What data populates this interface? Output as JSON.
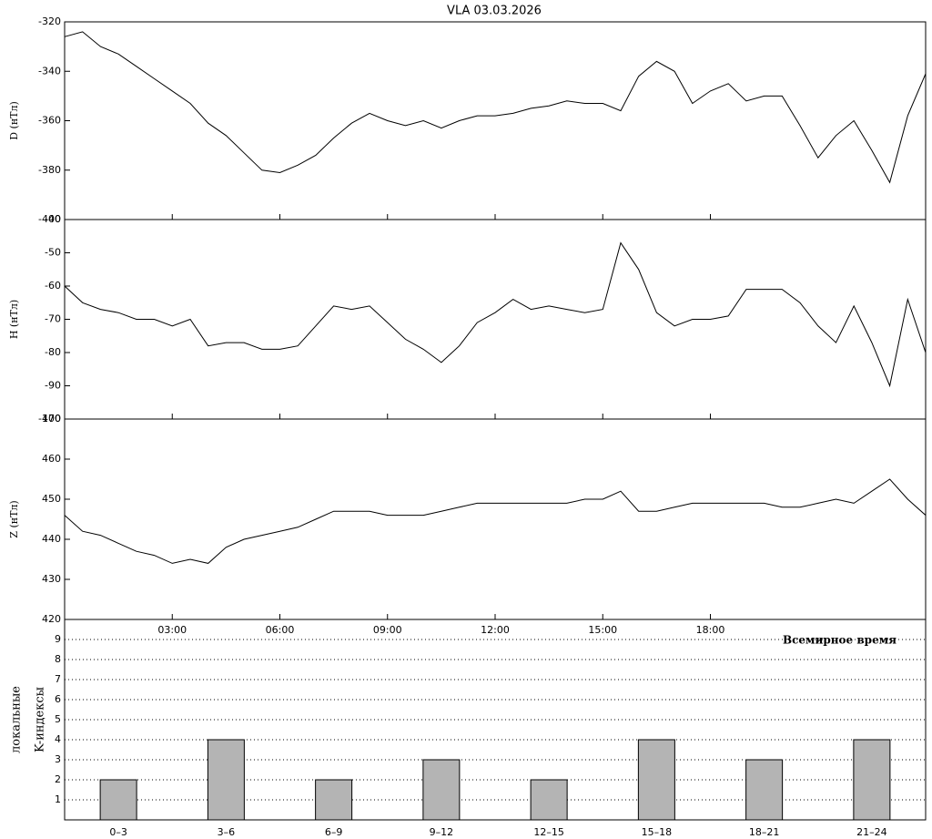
{
  "chart_data": [
    {
      "type": "line",
      "title": "VLA   03.03.2026",
      "y_label": "D (нТл)",
      "x": [
        0,
        0.5,
        1,
        1.5,
        2,
        2.5,
        3,
        3.5,
        4,
        4.5,
        5,
        5.5,
        6,
        6.5,
        7,
        7.5,
        8,
        8.5,
        9,
        9.5,
        10,
        10.5,
        11,
        11.5,
        12,
        12.5,
        13,
        13.5,
        14,
        14.5,
        15,
        15.5,
        16,
        16.5,
        17,
        17.5,
        18,
        18.5,
        19,
        19.5,
        20,
        20.5,
        21,
        21.5,
        22,
        22.5,
        23,
        23.5,
        24
      ],
      "series": [
        {
          "color": "#000000",
          "values": [
            -326,
            -324,
            -330,
            -333,
            -338,
            -343,
            -348,
            -353,
            -361,
            -366,
            -373,
            -380,
            -381,
            -378,
            -374,
            -367,
            -361,
            -357,
            -360,
            -362,
            -360,
            -363,
            -360,
            -358,
            -358,
            -357,
            -355,
            -354,
            -352,
            -353,
            -353,
            -356,
            -342,
            -336,
            -340,
            -353,
            -348,
            -345,
            -352,
            -350,
            -350,
            -362,
            -375,
            -366,
            -360,
            -372,
            -385,
            -358,
            -341
          ]
        }
      ],
      "xlim": [
        0,
        24
      ],
      "ylim": [
        -400,
        -320
      ],
      "yticks": [
        -320,
        -340,
        -360,
        -380,
        -400
      ]
    },
    {
      "type": "line",
      "y_label": "H (нТл)",
      "x": [
        0,
        0.5,
        1,
        1.5,
        2,
        2.5,
        3,
        3.5,
        4,
        4.5,
        5,
        5.5,
        6,
        6.5,
        7,
        7.5,
        8,
        8.5,
        9,
        9.5,
        10,
        10.5,
        11,
        11.5,
        12,
        12.5,
        13,
        13.5,
        14,
        14.5,
        15,
        15.5,
        16,
        16.5,
        17,
        17.5,
        18,
        18.5,
        19,
        19.5,
        20,
        20.5,
        21,
        21.5,
        22,
        22.5,
        23,
        23.5,
        24
      ],
      "series": [
        {
          "color": "#000000",
          "values": [
            -60,
            -65,
            -67,
            -68,
            -70,
            -70,
            -72,
            -70,
            -78,
            -77,
            -77,
            -79,
            -79,
            -78,
            -72,
            -66,
            -67,
            -66,
            -71,
            -76,
            -79,
            -83,
            -78,
            -71,
            -68,
            -64,
            -67,
            -66,
            -67,
            -68,
            -67,
            -47,
            -55,
            -68,
            -72,
            -70,
            -70,
            -69,
            -61,
            -61,
            -61,
            -65,
            -72,
            -77,
            -66,
            -77,
            -90,
            -64,
            -80
          ]
        }
      ],
      "xlim": [
        0,
        24
      ],
      "ylim": [
        -100,
        -40
      ],
      "yticks": [
        -40,
        -50,
        -60,
        -70,
        -80,
        -90,
        -100
      ]
    },
    {
      "type": "line",
      "y_label": "Z (нТл)",
      "x_label": "Всемирное время",
      "x": [
        0,
        0.5,
        1,
        1.5,
        2,
        2.5,
        3,
        3.5,
        4,
        4.5,
        5,
        5.5,
        6,
        6.5,
        7,
        7.5,
        8,
        8.5,
        9,
        9.5,
        10,
        10.5,
        11,
        11.5,
        12,
        12.5,
        13,
        13.5,
        14,
        14.5,
        15,
        15.5,
        16,
        16.5,
        17,
        17.5,
        18,
        18.5,
        19,
        19.5,
        20,
        20.5,
        21,
        21.5,
        22,
        22.5,
        23,
        23.5,
        24
      ],
      "series": [
        {
          "color": "#000000",
          "values": [
            446,
            442,
            441,
            439,
            437,
            436,
            434,
            435,
            434,
            438,
            440,
            441,
            442,
            443,
            445,
            447,
            447,
            447,
            446,
            446,
            446,
            447,
            448,
            449,
            449,
            449,
            449,
            449,
            449,
            450,
            450,
            452,
            447,
            447,
            448,
            449,
            449,
            449,
            449,
            449,
            448,
            448,
            449,
            450,
            449,
            452,
            455,
            450,
            446
          ]
        }
      ],
      "xlim": [
        0,
        24
      ],
      "ylim": [
        420,
        470
      ],
      "yticks": [
        420,
        430,
        440,
        450,
        460,
        470
      ],
      "xticks": [
        {
          "value": 3,
          "label": "03:00"
        },
        {
          "value": 6,
          "label": "06:00"
        },
        {
          "value": 9,
          "label": "09:00"
        },
        {
          "value": 12,
          "label": "12:00"
        },
        {
          "value": 15,
          "label": "15:00"
        },
        {
          "value": 18,
          "label": "18:00"
        }
      ]
    },
    {
      "type": "bar",
      "y_label": "K-индексы",
      "y_label2": "локальные",
      "categories": [
        "0–3",
        "3–6",
        "6–9",
        "9–12",
        "12–15",
        "15–18",
        "18–21",
        "21–24"
      ],
      "values": [
        2,
        4,
        2,
        3,
        2,
        4,
        3,
        4
      ],
      "color": "#b4b4b4",
      "ylim": [
        0,
        10
      ],
      "yticks": [
        1,
        2,
        3,
        4,
        5,
        6,
        7,
        8,
        9
      ],
      "grid": true
    }
  ]
}
